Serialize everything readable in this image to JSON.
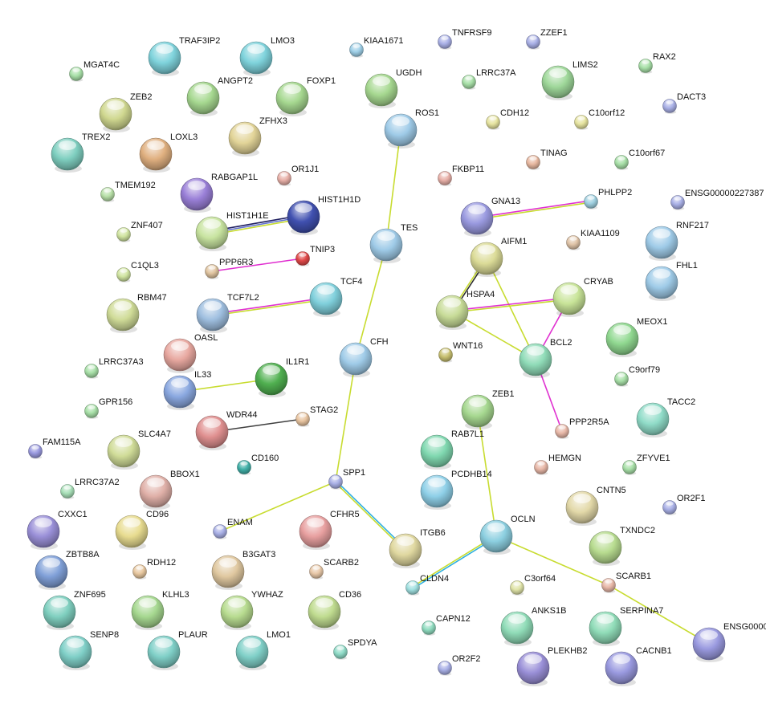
{
  "nodes": [
    {
      "name": "TRAF3IP2",
      "size": "large",
      "color": "#7fd3dc"
    },
    {
      "name": "LMO3",
      "size": "large",
      "color": "#7fd3dc"
    },
    {
      "name": "MGAT4C",
      "size": "small",
      "color": "#a8e0a8"
    },
    {
      "name": "KIAA1671",
      "size": "small",
      "color": "#9fd0e8"
    },
    {
      "name": "TNFRSF9",
      "size": "small",
      "color": "#a9b0e6"
    },
    {
      "name": "ZZEF1",
      "size": "small",
      "color": "#a9b0e6"
    },
    {
      "name": "RAX2",
      "size": "small",
      "color": "#a8e0a8"
    },
    {
      "name": "LRRC37A",
      "size": "small",
      "color": "#a8e0a8"
    },
    {
      "name": "LIMS2",
      "size": "large",
      "color": "#9fd89a"
    },
    {
      "name": "DACT3",
      "size": "small",
      "color": "#a9b0e6"
    },
    {
      "name": "ANGPT2",
      "size": "large",
      "color": "#a6d890"
    },
    {
      "name": "FOXP1",
      "size": "large",
      "color": "#a6d890"
    },
    {
      "name": "UGDH",
      "size": "large",
      "color": "#a6d890"
    },
    {
      "name": "ZEB2",
      "size": "large",
      "color": "#d0d890"
    },
    {
      "name": "CDH12",
      "size": "small",
      "color": "#e6e4a0"
    },
    {
      "name": "C10orf12",
      "size": "small",
      "color": "#e6e4a0"
    },
    {
      "name": "ROS1",
      "size": "large",
      "color": "#9fcbe8"
    },
    {
      "name": "ZFHX3",
      "size": "large",
      "color": "#e2d498"
    },
    {
      "name": "TREX2",
      "size": "large",
      "color": "#7fcfc0"
    },
    {
      "name": "LOXL3",
      "size": "large",
      "color": "#e0b080"
    },
    {
      "name": "TINAG",
      "size": "small",
      "color": "#e8b8a0"
    },
    {
      "name": "C10orf67",
      "size": "small",
      "color": "#a8e0a8"
    },
    {
      "name": "OR1J1",
      "size": "small",
      "color": "#e8b0a8"
    },
    {
      "name": "FKBP11",
      "size": "small",
      "color": "#e8b0a8"
    },
    {
      "name": "TMEM192",
      "size": "small",
      "color": "#b8e0a8"
    },
    {
      "name": "RABGAP1L",
      "size": "large",
      "color": "#9a80d8"
    },
    {
      "name": "HIST1H1D",
      "size": "large",
      "color": "#4050b0"
    },
    {
      "name": "ENSG00000227387",
      "size": "small",
      "color": "#a9b0e6"
    },
    {
      "name": "PHLPP2",
      "size": "small",
      "color": "#9fd0e0"
    },
    {
      "name": "GNA13",
      "size": "large",
      "color": "#9a9ae0"
    },
    {
      "name": "HIST1H1E",
      "size": "large",
      "color": "#c8e4a0"
    },
    {
      "name": "ZNF407",
      "size": "small",
      "color": "#d0e4a0"
    },
    {
      "name": "KIAA1109",
      "size": "small",
      "color": "#e0c4a8"
    },
    {
      "name": "RNF217",
      "size": "large",
      "color": "#9fcbe8"
    },
    {
      "name": "TES",
      "size": "large",
      "color": "#9fcbe8"
    },
    {
      "name": "TNIP3",
      "size": "small",
      "color": "#e04848"
    },
    {
      "name": "AIFM1",
      "size": "large",
      "color": "#dcdc98"
    },
    {
      "name": "PPP6R3",
      "size": "small",
      "color": "#e0c4a0"
    },
    {
      "name": "C1QL3",
      "size": "small",
      "color": "#d0e4a0"
    },
    {
      "name": "FHL1",
      "size": "large",
      "color": "#9fcbe8"
    },
    {
      "name": "TCF4",
      "size": "large",
      "color": "#80d0dc"
    },
    {
      "name": "CRYAB",
      "size": "large",
      "color": "#c8e498"
    },
    {
      "name": "RBM47",
      "size": "large",
      "color": "#d0dc98"
    },
    {
      "name": "TCF7L2",
      "size": "large",
      "color": "#9fbfe0"
    },
    {
      "name": "HSPA4",
      "size": "large",
      "color": "#c8dc98"
    },
    {
      "name": "MEOX1",
      "size": "large",
      "color": "#90d890"
    },
    {
      "name": "OASL",
      "size": "large",
      "color": "#e8a8a0"
    },
    {
      "name": "CFH",
      "size": "large",
      "color": "#9fcbe8"
    },
    {
      "name": "WNT16",
      "size": "small",
      "color": "#c8c070"
    },
    {
      "name": "BCL2",
      "size": "large",
      "color": "#90dcb8"
    },
    {
      "name": "LRRC37A3",
      "size": "small",
      "color": "#a8e0a8"
    },
    {
      "name": "IL1R1",
      "size": "large",
      "color": "#50b050"
    },
    {
      "name": "C9orf79",
      "size": "small",
      "color": "#a8e0a8"
    },
    {
      "name": "IL33",
      "size": "large",
      "color": "#8aa8e0"
    },
    {
      "name": "GPR156",
      "size": "small",
      "color": "#a8e0a8"
    },
    {
      "name": "ZEB1",
      "size": "large",
      "color": "#a6d890"
    },
    {
      "name": "STAG2",
      "size": "small",
      "color": "#e8c4a0"
    },
    {
      "name": "TACC2",
      "size": "large",
      "color": "#90dcc8"
    },
    {
      "name": "WDR44",
      "size": "large",
      "color": "#e09090"
    },
    {
      "name": "PPP2R5A",
      "size": "small",
      "color": "#e8b8a8"
    },
    {
      "name": "RAB7L1",
      "size": "large",
      "color": "#80d8b0"
    },
    {
      "name": "FAM115A",
      "size": "small",
      "color": "#9a9ae0"
    },
    {
      "name": "SLC4A7",
      "size": "large",
      "color": "#d0dc98"
    },
    {
      "name": "HEMGN",
      "size": "small",
      "color": "#e8b8a8"
    },
    {
      "name": "ZFYVE1",
      "size": "small",
      "color": "#a8e0a8"
    },
    {
      "name": "CD160",
      "size": "small",
      "color": "#40b0a8"
    },
    {
      "name": "SPP1",
      "size": "small",
      "color": "#a9b0e6"
    },
    {
      "name": "PCDHB14",
      "size": "large",
      "color": "#8fd0e8"
    },
    {
      "name": "BBOX1",
      "size": "large",
      "color": "#e0b0a8"
    },
    {
      "name": "LRRC37A2",
      "size": "small",
      "color": "#a8e0b8"
    },
    {
      "name": "OR2F1",
      "size": "small",
      "color": "#a9b0e6"
    },
    {
      "name": "CNTN5",
      "size": "large",
      "color": "#e2d8a8"
    },
    {
      "name": "CXXC1",
      "size": "large",
      "color": "#9a90d8"
    },
    {
      "name": "CD96",
      "size": "large",
      "color": "#e8dc90"
    },
    {
      "name": "CFHR5",
      "size": "large",
      "color": "#e8a0a0"
    },
    {
      "name": "ENAM",
      "size": "small",
      "color": "#a9b0e6"
    },
    {
      "name": "OCLN",
      "size": "large",
      "color": "#8ccfe0"
    },
    {
      "name": "TXNDC2",
      "size": "large",
      "color": "#b8dc90"
    },
    {
      "name": "ITGB6",
      "size": "large",
      "color": "#e0d8a0"
    },
    {
      "name": "ZBTB8A",
      "size": "large",
      "color": "#80a0d8"
    },
    {
      "name": "RDH12",
      "size": "small",
      "color": "#e8c8a0"
    },
    {
      "name": "B3GAT3",
      "size": "large",
      "color": "#e0c8a0"
    },
    {
      "name": "SCARB2",
      "size": "small",
      "color": "#e8c8a8"
    },
    {
      "name": "SCARB1",
      "size": "small",
      "color": "#e8b8a8"
    },
    {
      "name": "CLDN4",
      "size": "small",
      "color": "#a0e0e0"
    },
    {
      "name": "C3orf64",
      "size": "small",
      "color": "#e0e4a8"
    },
    {
      "name": "ZNF695",
      "size": "large",
      "color": "#80d0c0"
    },
    {
      "name": "KLHL3",
      "size": "large",
      "color": "#a6d890"
    },
    {
      "name": "YWHAZ",
      "size": "large",
      "color": "#b8dc90"
    },
    {
      "name": "CD36",
      "size": "large",
      "color": "#c0dc90"
    },
    {
      "name": "CAPN12",
      "size": "small",
      "color": "#90dcc0"
    },
    {
      "name": "ANKS1B",
      "size": "large",
      "color": "#90dcb8"
    },
    {
      "name": "SERPINA7",
      "size": "large",
      "color": "#90dcb8"
    },
    {
      "name": "ENSG0000",
      "size": "large",
      "color": "#9a9ae0"
    },
    {
      "name": "SPDYA",
      "size": "small",
      "color": "#90dcc8"
    },
    {
      "name": "SENP8",
      "size": "large",
      "color": "#80d0c8"
    },
    {
      "name": "PLAUR",
      "size": "large",
      "color": "#80d0c8"
    },
    {
      "name": "LMO1",
      "size": "large",
      "color": "#80d0c8"
    },
    {
      "name": "PLEKHB2",
      "size": "large",
      "color": "#9a90d8"
    },
    {
      "name": "CACNB1",
      "size": "large",
      "color": "#9a9ae0"
    },
    {
      "name": "OR2F2",
      "size": "small",
      "color": "#a9b0e6"
    }
  ],
  "edges": [
    {
      "from": "ROS1",
      "to": "TES",
      "colors": [
        "#c8dc30"
      ]
    },
    {
      "from": "TES",
      "to": "CFH",
      "colors": [
        "#c8dc30"
      ]
    },
    {
      "from": "CFH",
      "to": "SPP1",
      "colors": [
        "#c8dc30"
      ]
    },
    {
      "from": "SPP1",
      "to": "ENAM",
      "colors": [
        "#c8dc30"
      ]
    },
    {
      "from": "SPP1",
      "to": "ITGB6",
      "colors": [
        "#30b0e0",
        "#c8dc30"
      ]
    },
    {
      "from": "HIST1H1E",
      "to": "HIST1H1D",
      "colors": [
        "#202060",
        "#6070d0",
        "#c8dc30"
      ]
    },
    {
      "from": "PPP6R3",
      "to": "TNIP3",
      "colors": [
        "#e030d0"
      ]
    },
    {
      "from": "TCF7L2",
      "to": "TCF4",
      "colors": [
        "#e030d0",
        "#c8dc30"
      ]
    },
    {
      "from": "IL33",
      "to": "IL1R1",
      "colors": [
        "#c8dc30"
      ]
    },
    {
      "from": "WDR44",
      "to": "STAG2",
      "colors": [
        "#404040"
      ]
    },
    {
      "from": "GNA13",
      "to": "PHLPP2",
      "colors": [
        "#e030d0",
        "#c8dc30"
      ]
    },
    {
      "from": "AIFM1",
      "to": "HSPA4",
      "colors": [
        "#303030",
        "#c8dc30"
      ]
    },
    {
      "from": "AIFM1",
      "to": "BCL2",
      "colors": [
        "#c8dc30"
      ]
    },
    {
      "from": "HSPA4",
      "to": "CRYAB",
      "colors": [
        "#e030d0",
        "#c8dc30"
      ]
    },
    {
      "from": "HSPA4",
      "to": "BCL2",
      "colors": [
        "#c8dc30"
      ]
    },
    {
      "from": "CRYAB",
      "to": "BCL2",
      "colors": [
        "#e030d0"
      ]
    },
    {
      "from": "BCL2",
      "to": "PPP2R5A",
      "colors": [
        "#e030d0"
      ]
    },
    {
      "from": "ZEB1",
      "to": "OCLN",
      "colors": [
        "#c8dc30"
      ]
    },
    {
      "from": "OCLN",
      "to": "CLDN4",
      "colors": [
        "#30b0e0",
        "#c8dc30"
      ]
    },
    {
      "from": "OCLN",
      "to": "SCARB1",
      "colors": [
        "#c8dc30"
      ]
    },
    {
      "from": "SCARB1",
      "to": "ENSG0000",
      "colors": [
        "#c8dc30"
      ]
    }
  ]
}
